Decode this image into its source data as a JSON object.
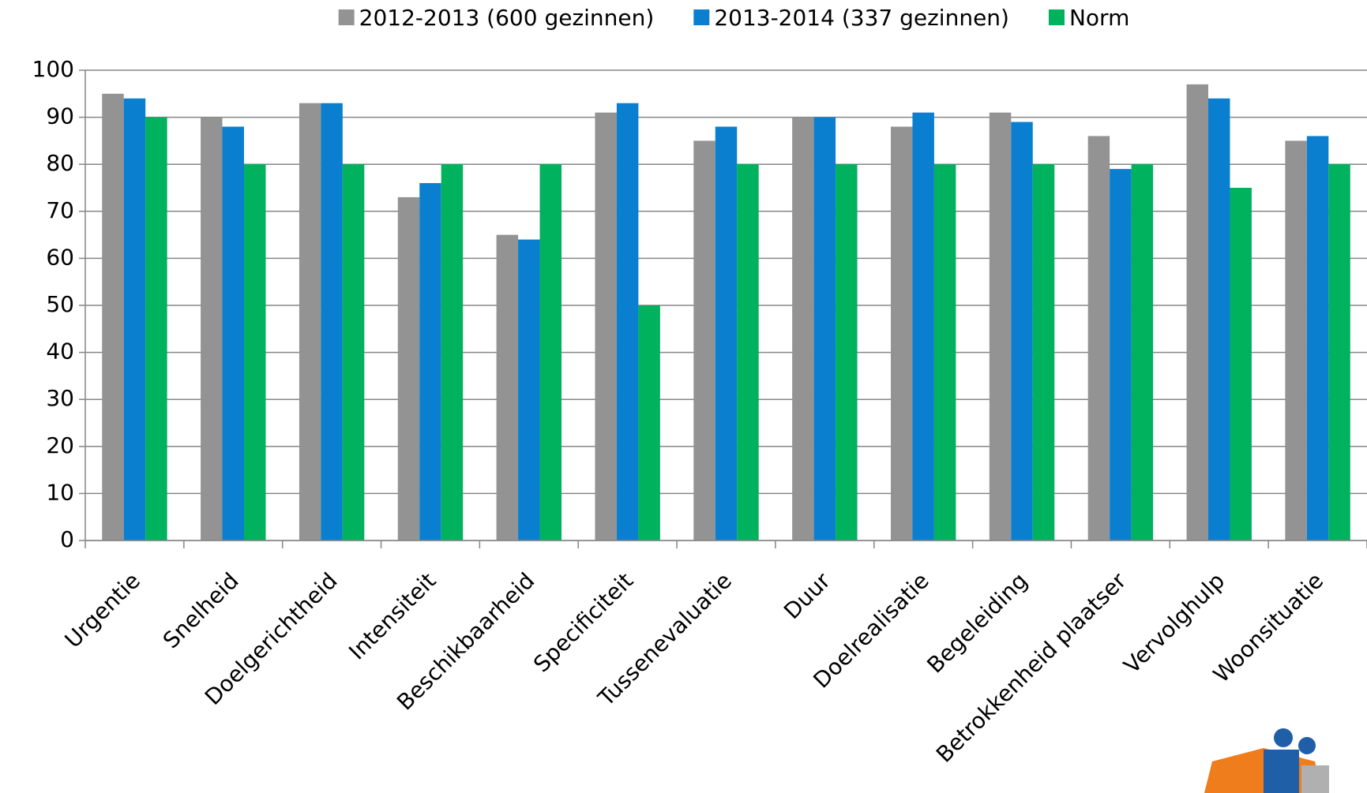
{
  "chart_data": {
    "type": "bar",
    "categories": [
      "Urgentie",
      "Snelheid",
      "Doelgerichtheid",
      "Intensiteit",
      "Beschikbaarheid",
      "Specificiteit",
      "Tussenevaluatie",
      "Duur",
      "Doelrealisatie",
      "Begeleiding",
      "Betrokkenheid plaatser",
      "Vervolghulp",
      "Woonsituatie"
    ],
    "series": [
      {
        "name": "2012-2013 (600 gezinnen)",
        "color": "#939393",
        "values": [
          95,
          90,
          93,
          73,
          65,
          91,
          85,
          90,
          88,
          91,
          86,
          97,
          85
        ]
      },
      {
        "name": "2013-2014 (337 gezinnen)",
        "color": "#0a7fd0",
        "values": [
          94,
          88,
          93,
          76,
          64,
          93,
          88,
          90,
          91,
          89,
          79,
          94,
          86
        ]
      },
      {
        "name": "Norm",
        "color": "#00b15d",
        "values": [
          90,
          80,
          80,
          80,
          80,
          50,
          80,
          80,
          80,
          80,
          80,
          75,
          80
        ]
      }
    ],
    "ylim": [
      0,
      100
    ],
    "yticks": [
      0,
      10,
      20,
      30,
      40,
      50,
      60,
      70,
      80,
      90,
      100
    ],
    "grid": true,
    "legend": "top"
  }
}
